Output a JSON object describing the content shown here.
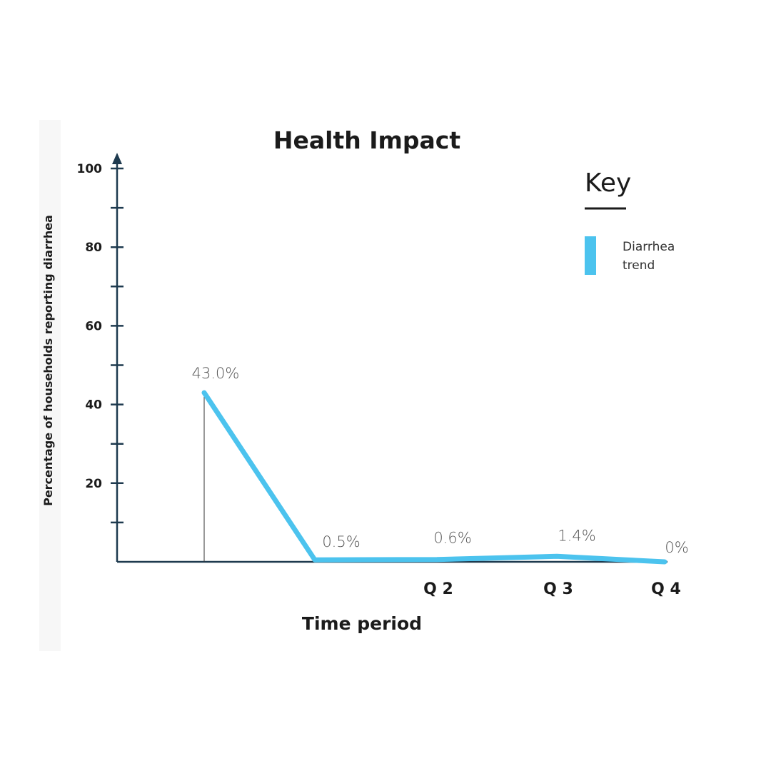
{
  "chart_data": {
    "type": "line",
    "title": "Health Impact",
    "xlabel": "Time period",
    "ylabel": "Percentage of households reporting diarrhea",
    "categories": [
      "",
      "",
      "Q 2",
      "Q 3",
      "Q 4"
    ],
    "series": [
      {
        "name": "Diarrhea trend",
        "values": [
          43.0,
          0.5,
          0.6,
          1.4,
          0
        ],
        "labels": [
          "43.0%",
          "0.5%",
          "0.6%",
          "1.4%",
          "0%"
        ],
        "color": "#4cc3ee"
      }
    ],
    "ylim": [
      0,
      100
    ],
    "yticks": [
      20,
      40,
      60,
      80,
      100
    ],
    "grid": false,
    "legend": {
      "title": "Key",
      "placement": "top-right"
    },
    "axis_color": "#1e3a4f"
  }
}
